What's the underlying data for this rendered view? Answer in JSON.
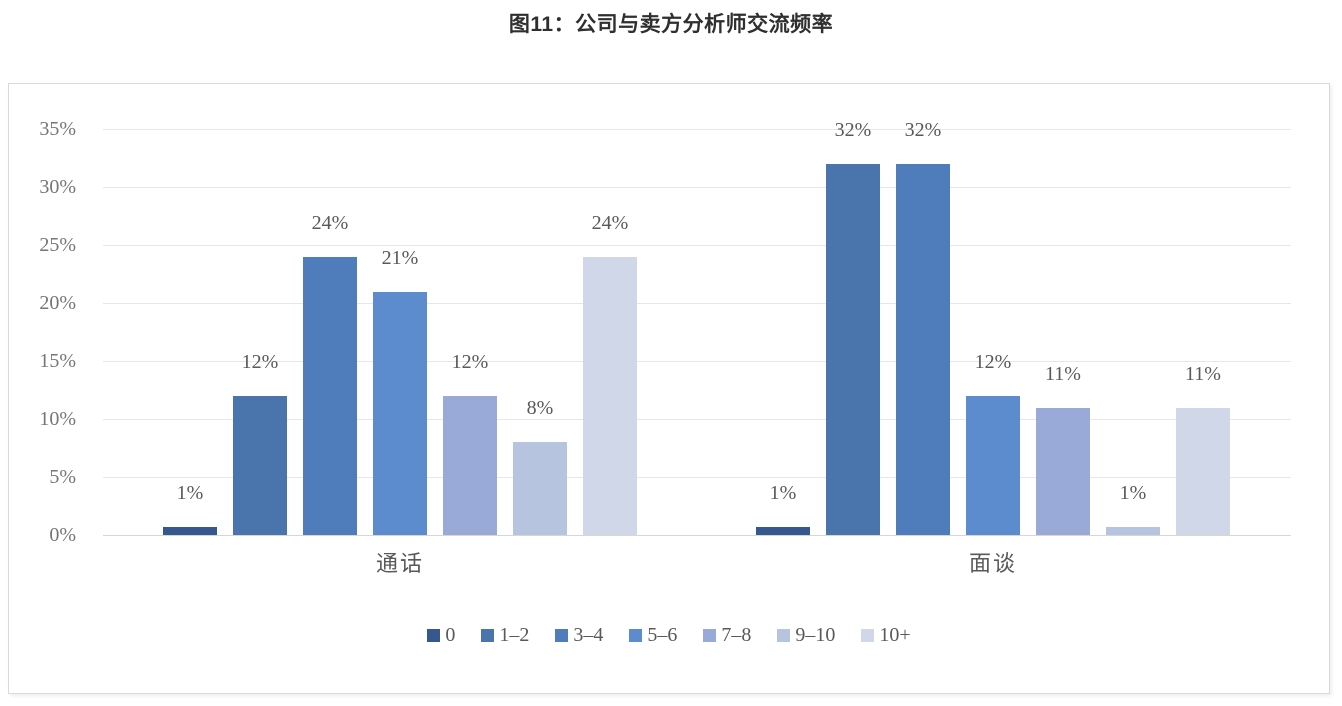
{
  "title": "图11：公司与卖方分析师交流频率",
  "chart_data": {
    "type": "bar",
    "categories": [
      "通话",
      "面谈"
    ],
    "series": [
      {
        "name": "0",
        "color": "#35598E",
        "values": [
          1,
          1
        ]
      },
      {
        "name": "1–2",
        "color": "#4A74AC",
        "values": [
          12,
          32
        ]
      },
      {
        "name": "3–4",
        "color": "#4F7CBA",
        "values": [
          24,
          32
        ]
      },
      {
        "name": "5–6",
        "color": "#5C8BCE",
        "values": [
          21,
          12
        ]
      },
      {
        "name": "7–8",
        "color": "#9AAAD8",
        "values": [
          12,
          11
        ]
      },
      {
        "name": "9–10",
        "color": "#B7C4E0",
        "values": [
          8,
          1
        ]
      },
      {
        "name": "10+",
        "color": "#CFD7E9",
        "values": [
          24,
          11
        ]
      }
    ],
    "value_labels": [
      [
        "1%",
        "12%",
        "24%",
        "21%",
        "12%",
        "8%",
        "24%"
      ],
      [
        "1%",
        "32%",
        "32%",
        "12%",
        "11%",
        "1%",
        "11%"
      ]
    ],
    "y_ticks": [
      "0%",
      "5%",
      "10%",
      "15%",
      "20%",
      "25%",
      "30%",
      "35%"
    ],
    "ylim": [
      0,
      35
    ],
    "grid": true,
    "legend_position": "bottom",
    "colors": {
      "gridline": "#e7e7e7",
      "tick_text": "#767676",
      "label_text": "#595959"
    }
  }
}
